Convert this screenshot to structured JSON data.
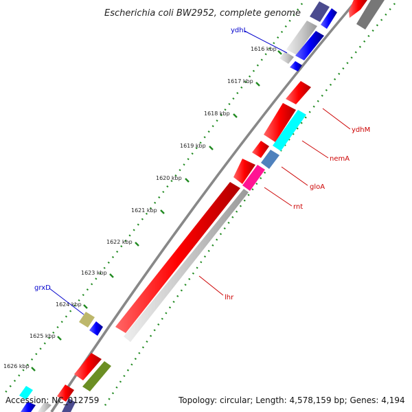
{
  "title": "Escherichia coli BW2952, complete genome",
  "accession": "Accession: NC_012759",
  "topology": "Topology: circular; Length: 4,578,159 bp; Genes: 4,194",
  "ticks": [
    "1616 kbp",
    "1617 kbp",
    "1618 kbp",
    "1619 kbp",
    "1620 kbp",
    "1621 kbp",
    "1622 kbp",
    "1623 kbp",
    "1624 kbp",
    "1625 kbp",
    "1626 kbp"
  ],
  "gene_labels": {
    "ydhL": "ydhL",
    "ydhM": "ydhM",
    "nemA": "nemA",
    "gloA": "gloA",
    "rnt": "rnt",
    "lhr": "lhr",
    "grxD": "grxD"
  },
  "colors": {
    "red": "#ff0000",
    "blue": "#0000ff",
    "cyan": "#00ffff",
    "magenta": "#ff1493",
    "steel": "#4f81bd",
    "grey": "#c8c8c8",
    "darkgrey": "#777777",
    "purple": "#4b4b8f",
    "olive": "#6b8e23",
    "khaki": "#bdb76b",
    "green_dots": "#228b22",
    "label_red": "#cc0000",
    "label_blue": "#0000cc"
  }
}
